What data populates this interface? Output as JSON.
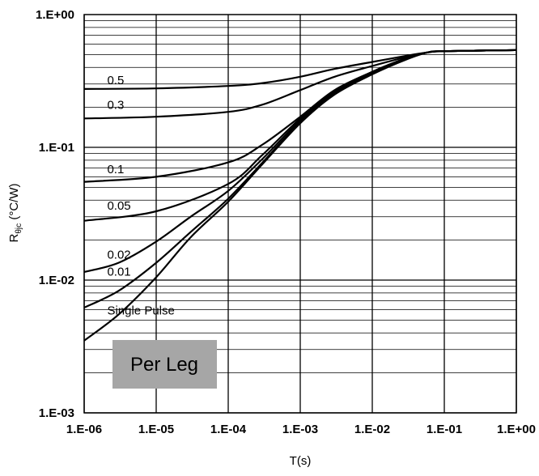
{
  "chart_data": {
    "type": "line",
    "title": "",
    "xlabel": "T(s)",
    "ylabel": "R",
    "ylabel_subscript": "θjc",
    "ylabel_unit": " (°C/W)",
    "x_scale": "log",
    "y_scale": "log",
    "xlim": [
      1e-06,
      1
    ],
    "ylim": [
      0.001,
      1
    ],
    "grid": true,
    "x_ticks": [
      {
        "value": 1e-06,
        "label": "1.E-06"
      },
      {
        "value": 1e-05,
        "label": "1.E-05"
      },
      {
        "value": 0.0001,
        "label": "1.E-04"
      },
      {
        "value": 0.001,
        "label": "1.E-03"
      },
      {
        "value": 0.01,
        "label": "1.E-02"
      },
      {
        "value": 0.1,
        "label": "1.E-01"
      },
      {
        "value": 1,
        "label": "1.E+00"
      }
    ],
    "y_ticks": [
      {
        "value": 1,
        "label": "1.E+00"
      },
      {
        "value": 0.1,
        "label": "1.E-01"
      },
      {
        "value": 0.01,
        "label": "1.E-02"
      },
      {
        "value": 0.001,
        "label": "1.E-03"
      }
    ],
    "series": [
      {
        "name": "0.5",
        "label_at": [
          3e-06,
          0.3
        ],
        "points": [
          [
            1e-06,
            0.275
          ],
          [
            1e-05,
            0.278
          ],
          [
            0.0001,
            0.29
          ],
          [
            0.0003,
            0.305
          ],
          [
            0.001,
            0.34
          ],
          [
            0.003,
            0.39
          ],
          [
            0.01,
            0.44
          ],
          [
            0.03,
            0.49
          ],
          [
            0.06,
            0.52
          ],
          [
            0.1,
            0.53
          ],
          [
            1,
            0.54
          ]
        ]
      },
      {
        "name": "0.3",
        "label_at": [
          3e-06,
          0.195
        ],
        "points": [
          [
            1e-06,
            0.165
          ],
          [
            1e-05,
            0.17
          ],
          [
            0.0001,
            0.185
          ],
          [
            0.0003,
            0.21
          ],
          [
            0.001,
            0.27
          ],
          [
            0.003,
            0.34
          ],
          [
            0.01,
            0.41
          ],
          [
            0.03,
            0.48
          ],
          [
            0.06,
            0.52
          ],
          [
            0.1,
            0.53
          ],
          [
            1,
            0.54
          ]
        ]
      },
      {
        "name": "0.1",
        "label_at": [
          3e-06,
          0.064
        ],
        "points": [
          [
            1e-06,
            0.055
          ],
          [
            1e-05,
            0.06
          ],
          [
            0.0001,
            0.077
          ],
          [
            0.0003,
            0.105
          ],
          [
            0.001,
            0.17
          ],
          [
            0.003,
            0.27
          ],
          [
            0.01,
            0.37
          ],
          [
            0.03,
            0.47
          ],
          [
            0.06,
            0.52
          ],
          [
            0.1,
            0.53
          ],
          [
            1,
            0.54
          ]
        ]
      },
      {
        "name": "0.05",
        "label_at": [
          3e-06,
          0.034
        ],
        "points": [
          [
            1e-06,
            0.028
          ],
          [
            1e-05,
            0.033
          ],
          [
            0.0001,
            0.053
          ],
          [
            0.0003,
            0.088
          ],
          [
            0.001,
            0.165
          ],
          [
            0.003,
            0.265
          ],
          [
            0.01,
            0.37
          ],
          [
            0.03,
            0.47
          ],
          [
            0.06,
            0.52
          ],
          [
            0.1,
            0.53
          ],
          [
            1,
            0.54
          ]
        ]
      },
      {
        "name": "0.02",
        "label_at": [
          3e-06,
          0.0145
        ],
        "points": [
          [
            1e-06,
            0.0115
          ],
          [
            3e-06,
            0.0135
          ],
          [
            1e-05,
            0.0195
          ],
          [
            3e-05,
            0.03
          ],
          [
            0.0001,
            0.047
          ],
          [
            0.0003,
            0.082
          ],
          [
            0.001,
            0.16
          ],
          [
            0.003,
            0.26
          ],
          [
            0.01,
            0.37
          ],
          [
            0.03,
            0.47
          ],
          [
            0.06,
            0.52
          ],
          [
            0.1,
            0.53
          ],
          [
            1,
            0.54
          ]
        ]
      },
      {
        "name": "0.01",
        "label_at": [
          3e-06,
          0.0108
        ],
        "points": [
          [
            1e-06,
            0.0062
          ],
          [
            3e-06,
            0.0083
          ],
          [
            1e-05,
            0.0135
          ],
          [
            3e-05,
            0.023
          ],
          [
            0.0001,
            0.041
          ],
          [
            0.0003,
            0.077
          ],
          [
            0.001,
            0.155
          ],
          [
            0.003,
            0.255
          ],
          [
            0.01,
            0.36
          ],
          [
            0.03,
            0.465
          ],
          [
            0.06,
            0.52
          ],
          [
            0.1,
            0.53
          ],
          [
            1,
            0.54
          ]
        ]
      },
      {
        "name": "Single Pulse",
        "label_at": [
          3e-06,
          0.0055
        ],
        "points": [
          [
            1e-06,
            0.0035
          ],
          [
            3e-06,
            0.0055
          ],
          [
            1e-05,
            0.0105
          ],
          [
            3e-05,
            0.021
          ],
          [
            0.0001,
            0.039
          ],
          [
            0.0003,
            0.075
          ],
          [
            0.001,
            0.152
          ],
          [
            0.003,
            0.25
          ],
          [
            0.01,
            0.355
          ],
          [
            0.03,
            0.46
          ],
          [
            0.06,
            0.52
          ],
          [
            0.1,
            0.53
          ],
          [
            1,
            0.54
          ]
        ]
      }
    ],
    "annotations": [
      {
        "text": "Per Leg",
        "at": [
          1e-05,
          0.0025
        ]
      }
    ]
  }
}
